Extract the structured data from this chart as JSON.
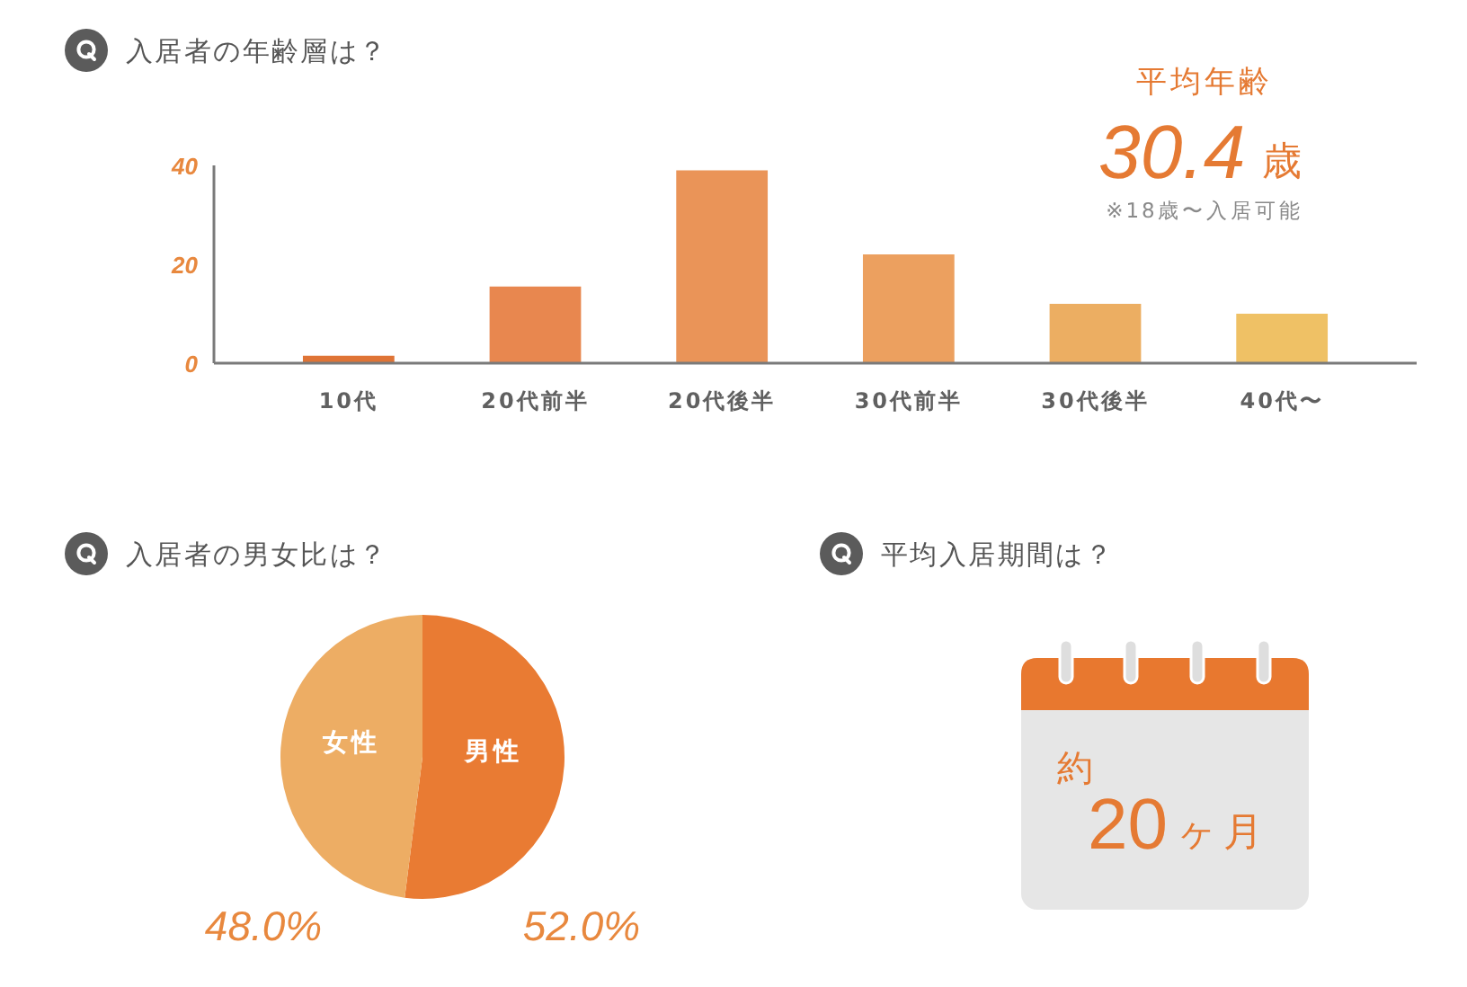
{
  "chart_data": [
    {
      "type": "bar",
      "title": "入居者の年齢層は？",
      "categories": [
        "10代",
        "20代前半",
        "20代後半",
        "30代前半",
        "30代後半",
        "40代〜"
      ],
      "values": [
        1.5,
        15.5,
        39,
        22,
        12,
        10
      ],
      "colors": [
        "#df7436",
        "#e8874f",
        "#ea9458",
        "#eca05f",
        "#ecae62",
        "#efc165"
      ],
      "ylim": [
        0,
        40
      ],
      "yticks": [
        0,
        20,
        40
      ],
      "annotations": [
        "平均年齢",
        "30.4",
        "歳",
        "※18歳〜入居可能"
      ]
    },
    {
      "type": "pie",
      "title": "入居者の男女比は？",
      "categories": [
        "男性",
        "女性"
      ],
      "values": [
        52.0,
        48.0
      ],
      "colors": [
        "#e97b33",
        "#edad64"
      ],
      "value_labels": [
        "52.0%",
        "48.0%"
      ]
    },
    {
      "type": "other",
      "title": "平均入居期間は？",
      "annotations": [
        "約",
        "20",
        "ヶ月"
      ]
    }
  ]
}
